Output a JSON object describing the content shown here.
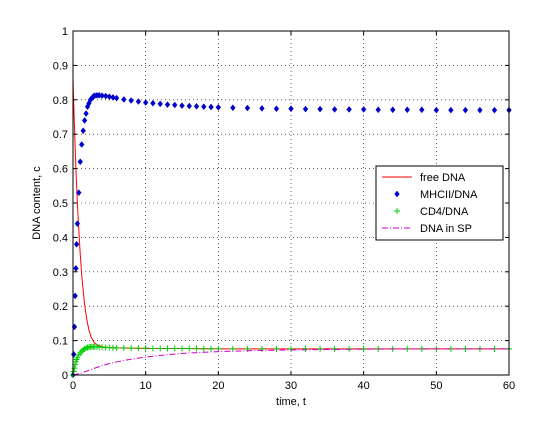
{
  "chart_data": {
    "type": "line",
    "title": "",
    "xlabel": "time, t",
    "ylabel": "DNA content, c",
    "xlim": [
      0,
      60
    ],
    "ylim": [
      0,
      1
    ],
    "xticks": [
      0,
      10,
      20,
      30,
      40,
      50,
      60
    ],
    "yticks": [
      0,
      0.1,
      0.2,
      0.3,
      0.4,
      0.5,
      0.6,
      0.7,
      0.8,
      0.9,
      1
    ],
    "xtick_labels": [
      "0",
      "10",
      "20",
      "30",
      "40",
      "50",
      "60"
    ],
    "ytick_labels": [
      "0",
      "0.1",
      "0.2",
      "0.3",
      "0.4",
      "0.5",
      "0.6",
      "0.7",
      "0.8",
      "0.9",
      "1"
    ],
    "grid": true,
    "legend_position": "right-middle",
    "series": [
      {
        "name": "free DNA",
        "style": "solid-line",
        "color": "#ff0000",
        "x": [
          0,
          0.1,
          0.2,
          0.3,
          0.4,
          0.5,
          0.6,
          0.8,
          1.0,
          1.2,
          1.4,
          1.6,
          1.8,
          2.0,
          2.2,
          2.5,
          2.8,
          3.0,
          3.5,
          4,
          5,
          6,
          8,
          10,
          15,
          20,
          30,
          40,
          50,
          60
        ],
        "y": [
          0.86,
          0.79,
          0.72,
          0.66,
          0.6,
          0.55,
          0.5,
          0.42,
          0.35,
          0.29,
          0.245,
          0.205,
          0.175,
          0.15,
          0.13,
          0.11,
          0.098,
          0.092,
          0.085,
          0.082,
          0.08,
          0.079,
          0.078,
          0.077,
          0.077,
          0.076,
          0.076,
          0.076,
          0.076,
          0.076
        ]
      },
      {
        "name": "MHCII/DNA",
        "style": "diamond-markers",
        "color": "#0000cc",
        "x": [
          0,
          0.1,
          0.2,
          0.3,
          0.4,
          0.5,
          0.6,
          0.8,
          1.0,
          1.2,
          1.4,
          1.6,
          1.8,
          2.0,
          2.2,
          2.4,
          2.6,
          2.8,
          3.0,
          3.3,
          3.6,
          4.0,
          4.5,
          5.0,
          5.5,
          6.0,
          7,
          8,
          9,
          10,
          11,
          12,
          13,
          14,
          15,
          16,
          17,
          18,
          19,
          20,
          22,
          24,
          26,
          28,
          30,
          32,
          34,
          36,
          38,
          40,
          42,
          44,
          46,
          48,
          50,
          52,
          54,
          56,
          58,
          60
        ],
        "y": [
          0,
          0.06,
          0.14,
          0.23,
          0.31,
          0.38,
          0.44,
          0.53,
          0.62,
          0.67,
          0.71,
          0.74,
          0.76,
          0.78,
          0.79,
          0.8,
          0.805,
          0.81,
          0.812,
          0.813,
          0.813,
          0.812,
          0.811,
          0.809,
          0.807,
          0.805,
          0.801,
          0.798,
          0.795,
          0.792,
          0.79,
          0.788,
          0.786,
          0.785,
          0.783,
          0.782,
          0.781,
          0.78,
          0.779,
          0.778,
          0.777,
          0.776,
          0.775,
          0.774,
          0.774,
          0.773,
          0.773,
          0.772,
          0.772,
          0.772,
          0.771,
          0.771,
          0.771,
          0.771,
          0.77,
          0.77,
          0.77,
          0.77,
          0.77,
          0.77
        ]
      },
      {
        "name": "CD4/DNA",
        "style": "plus-markers",
        "color": "#00cc00",
        "x": [
          0,
          0.1,
          0.2,
          0.3,
          0.4,
          0.5,
          0.6,
          0.8,
          1.0,
          1.2,
          1.4,
          1.6,
          1.8,
          2.0,
          2.2,
          2.4,
          2.6,
          2.8,
          3.0,
          3.3,
          3.6,
          4.0,
          4.5,
          5.0,
          5.5,
          6.0,
          7,
          8,
          9,
          10,
          11,
          12,
          13,
          14,
          15,
          16,
          17,
          18,
          19,
          20,
          22,
          24,
          26,
          28,
          30,
          32,
          34,
          36,
          38,
          40,
          42,
          44,
          46,
          48,
          50,
          52,
          54,
          56,
          58,
          60
        ],
        "y": [
          0,
          0.01,
          0.02,
          0.03,
          0.038,
          0.045,
          0.05,
          0.058,
          0.064,
          0.069,
          0.073,
          0.076,
          0.078,
          0.08,
          0.081,
          0.082,
          0.082,
          0.082,
          0.082,
          0.082,
          0.081,
          0.081,
          0.08,
          0.08,
          0.079,
          0.079,
          0.079,
          0.078,
          0.078,
          0.078,
          0.077,
          0.077,
          0.077,
          0.077,
          0.077,
          0.077,
          0.077,
          0.076,
          0.076,
          0.076,
          0.076,
          0.076,
          0.076,
          0.076,
          0.076,
          0.076,
          0.076,
          0.076,
          0.076,
          0.076,
          0.076,
          0.076,
          0.076,
          0.076,
          0.076,
          0.076,
          0.076,
          0.076,
          0.076,
          0.076
        ]
      },
      {
        "name": "DNA in SP",
        "style": "dash-dot-line",
        "color": "#cc00cc",
        "x": [
          0,
          1,
          2,
          3,
          4,
          5,
          6,
          8,
          10,
          12,
          14,
          16,
          18,
          20,
          25,
          30,
          35,
          40,
          50,
          60
        ],
        "y": [
          0,
          0.005,
          0.012,
          0.02,
          0.027,
          0.033,
          0.038,
          0.046,
          0.052,
          0.057,
          0.061,
          0.064,
          0.066,
          0.068,
          0.071,
          0.073,
          0.074,
          0.075,
          0.076,
          0.076
        ]
      }
    ]
  }
}
